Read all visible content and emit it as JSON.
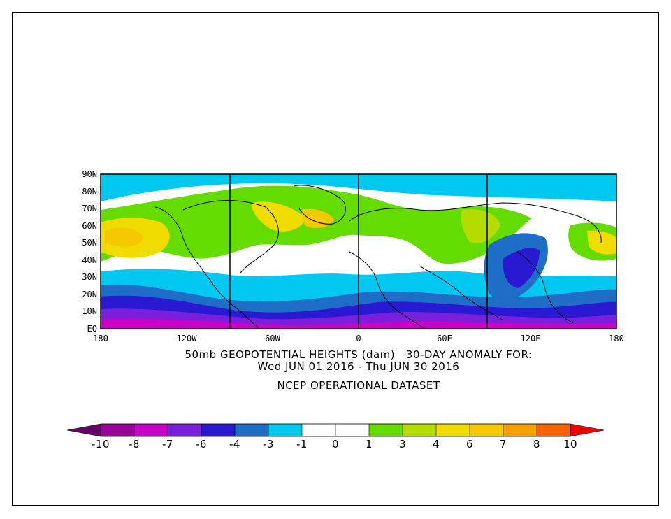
{
  "title": {
    "line1": "50mb GEOPOTENTIAL HEIGHTS (dam)   30-DAY ANOMALY FOR:",
    "line2": "Wed JUN 01 2016 - Thu JUN 30 2016",
    "line3": "NCEP OPERATIONAL DATASET"
  },
  "map": {
    "lat_labels": [
      "90N",
      "80N",
      "70N",
      "60N",
      "50N",
      "40N",
      "30N",
      "20N",
      "10N",
      "EQ"
    ],
    "lon_labels": [
      "180",
      "120W",
      "60W",
      "0",
      "60E",
      "120E",
      "180"
    ]
  },
  "legend": {
    "colors": [
      "#660066",
      "#99009a",
      "#c800c8",
      "#7a1fdc",
      "#2a19d2",
      "#1e6ec8",
      "#00c8f0",
      "#ffffff",
      "#ffffff",
      "#64dc00",
      "#b4dc00",
      "#f0dc00",
      "#f5c800",
      "#f5a000",
      "#f56400",
      "#f00000"
    ],
    "labels": [
      "-10",
      "-8",
      "-7",
      "-6",
      "-4",
      "-3",
      "-1",
      "0",
      "1",
      "3",
      "4",
      "6",
      "7",
      "8",
      "10"
    ]
  }
}
